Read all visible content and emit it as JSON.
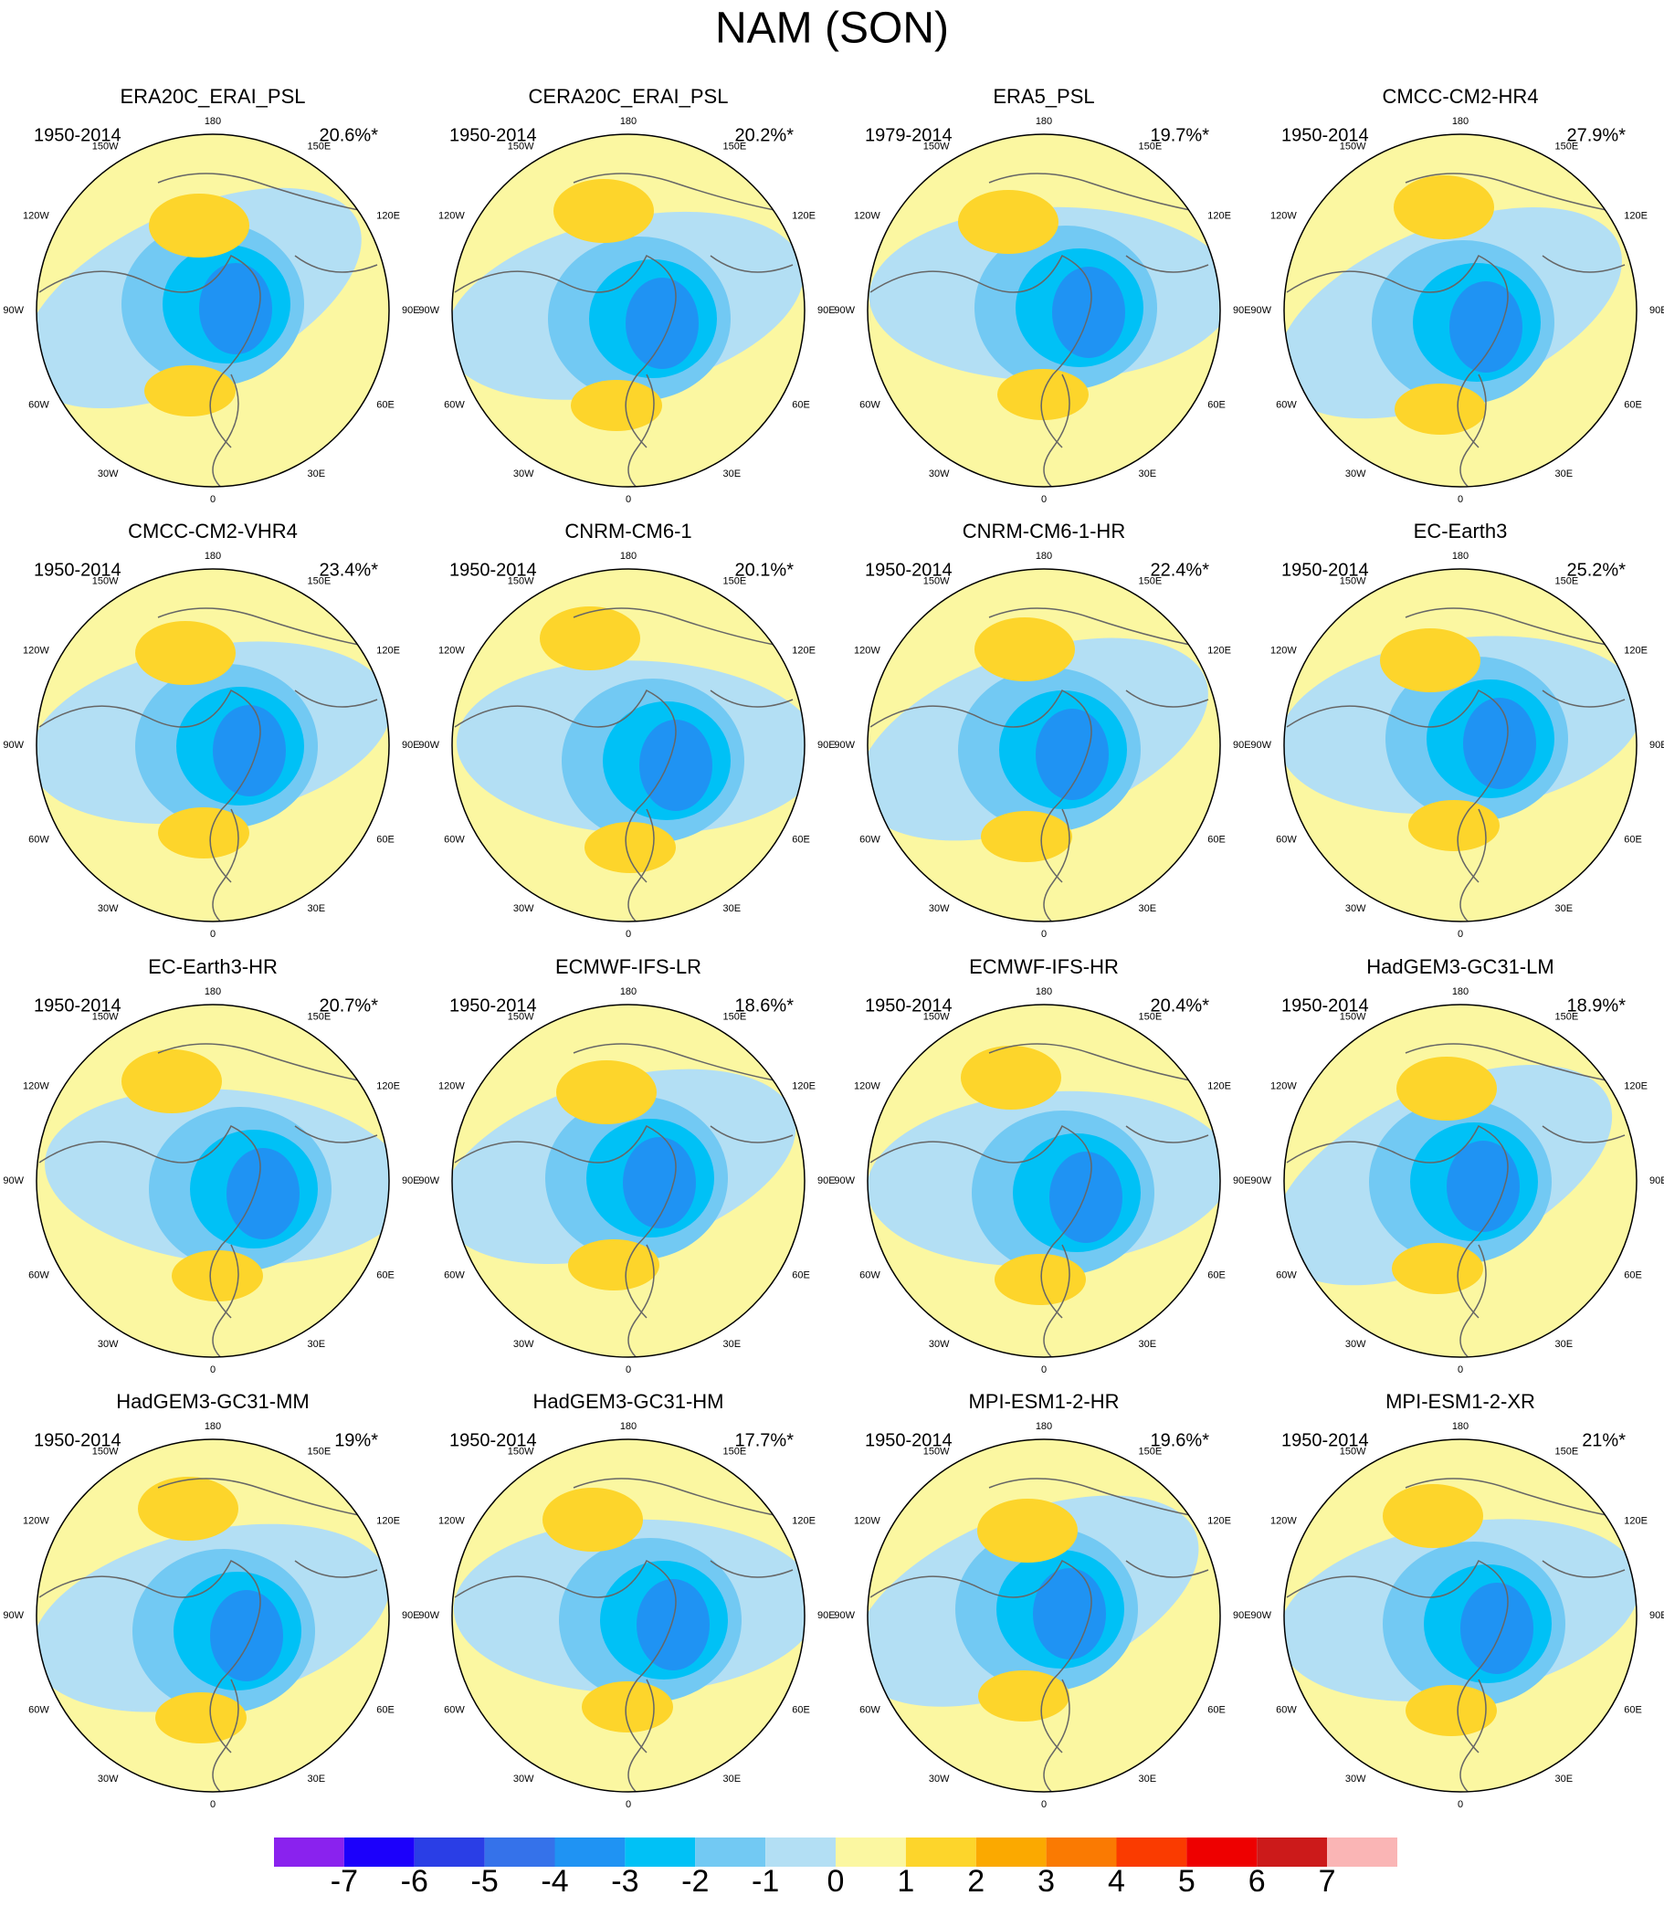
{
  "title": "NAM (SON)",
  "panels": [
    {
      "name": "ERA20C_ERAI_PSL",
      "period": "1950-2014",
      "percent": "20.6%*"
    },
    {
      "name": "CERA20C_ERAI_PSL",
      "period": "1950-2014",
      "percent": "20.2%*"
    },
    {
      "name": "ERA5_PSL",
      "period": "1979-2014",
      "percent": "19.7%*"
    },
    {
      "name": "CMCC-CM2-HR4",
      "period": "1950-2014",
      "percent": "27.9%*"
    },
    {
      "name": "CMCC-CM2-VHR4",
      "period": "1950-2014",
      "percent": "23.4%*"
    },
    {
      "name": "CNRM-CM6-1",
      "period": "1950-2014",
      "percent": "20.1%*"
    },
    {
      "name": "CNRM-CM6-1-HR",
      "period": "1950-2014",
      "percent": "22.4%*"
    },
    {
      "name": "EC-Earth3",
      "period": "1950-2014",
      "percent": "25.2%*"
    },
    {
      "name": "EC-Earth3-HR",
      "period": "1950-2014",
      "percent": "20.7%*"
    },
    {
      "name": "ECMWF-IFS-LR",
      "period": "1950-2014",
      "percent": "18.6%*"
    },
    {
      "name": "ECMWF-IFS-HR",
      "period": "1950-2014",
      "percent": "20.4%*"
    },
    {
      "name": "HadGEM3-GC31-LM",
      "period": "1950-2014",
      "percent": "18.9%*"
    },
    {
      "name": "HadGEM3-GC31-MM",
      "period": "1950-2014",
      "percent": "19%*"
    },
    {
      "name": "HadGEM3-GC31-HM",
      "period": "1950-2014",
      "percent": "17.7%*"
    },
    {
      "name": "MPI-ESM1-2-HR",
      "period": "1950-2014",
      "percent": "19.6%*"
    },
    {
      "name": "MPI-ESM1-2-XR",
      "period": "1950-2014",
      "percent": "21%*"
    }
  ],
  "longitude_labels": [
    {
      "label": "180",
      "deg": 180
    },
    {
      "label": "150W",
      "deg": -150
    },
    {
      "label": "150E",
      "deg": 150
    },
    {
      "label": "120W",
      "deg": -120
    },
    {
      "label": "120E",
      "deg": 120
    },
    {
      "label": "90W",
      "deg": -90
    },
    {
      "label": "90E",
      "deg": 90
    },
    {
      "label": "60W",
      "deg": -60
    },
    {
      "label": "60E",
      "deg": 60
    },
    {
      "label": "30W",
      "deg": -30
    },
    {
      "label": "30E",
      "deg": 30
    },
    {
      "label": "0",
      "deg": 0
    }
  ],
  "colorbar": {
    "ticks": [
      -7,
      -6,
      -5,
      -4,
      -3,
      -2,
      -1,
      0,
      1,
      2,
      3,
      4,
      5,
      6,
      7
    ],
    "colors": [
      "#8a22ee",
      "#1c00fb",
      "#2a3ee6",
      "#3572ea",
      "#1f93f3",
      "#00c1f6",
      "#72c9f3",
      "#b3dff4",
      "#fbf7a1",
      "#fdd52b",
      "#fba900",
      "#fa7a02",
      "#fa3b00",
      "#ee0000",
      "#cc1a1a",
      "#fab5b5"
    ]
  }
}
